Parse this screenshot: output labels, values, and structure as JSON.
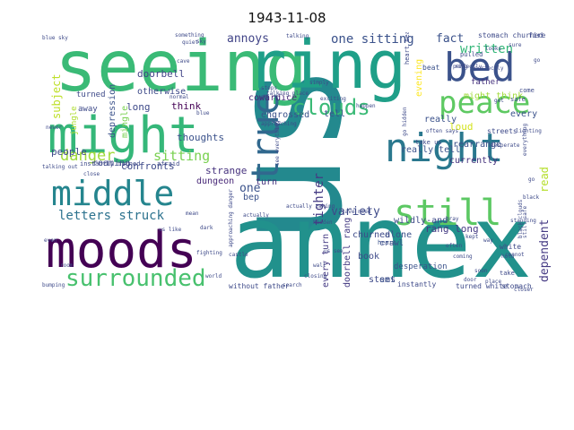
{
  "title": "1943-11-08",
  "word_cloud": {
    "words": [
      {
        "text": "us",
        "color": "#23898e"
      },
      {
        "text": "annex",
        "color": "#21918c"
      },
      {
        "text": "seeing",
        "color": "#3aba76"
      },
      {
        "text": "ring",
        "color": "#1f9f88"
      },
      {
        "text": "might",
        "color": "#35b779"
      },
      {
        "text": "moods",
        "color": "#440154"
      },
      {
        "text": "bed",
        "color": "#3b528b"
      },
      {
        "text": "middle",
        "color": "#25858e"
      },
      {
        "text": "night",
        "color": "#2a788e"
      },
      {
        "text": "peace",
        "color": "#5ec962"
      },
      {
        "text": "still",
        "color": "#5cc863"
      },
      {
        "text": "true",
        "color": "#31688e"
      },
      {
        "text": "surrounded",
        "color": "#48c16e"
      },
      {
        "text": "clouds",
        "color": "#3aba76"
      },
      {
        "text": "danger",
        "color": "#a0da39"
      },
      {
        "text": "sitting",
        "color": "#7ad151"
      },
      {
        "text": "letters struck",
        "color": "#2c728e"
      },
      {
        "text": "tighter",
        "color": "#443a83"
      },
      {
        "text": "variety",
        "color": "#3e4a89"
      },
      {
        "text": "annoys",
        "color": "#414487"
      },
      {
        "text": "one sitting",
        "color": "#3b528b"
      },
      {
        "text": "fact",
        "color": "#3b528b"
      },
      {
        "text": "written",
        "color": "#35b779"
      },
      {
        "text": "dependent",
        "color": "#443983"
      },
      {
        "text": "read",
        "color": "#b5de2b"
      },
      {
        "text": "subject",
        "color": "#bddf26"
      },
      {
        "text": "one",
        "color": "#3b528b"
      },
      {
        "text": "people",
        "color": "#3e4a89"
      },
      {
        "text": "doorbell",
        "color": "#414487"
      },
      {
        "text": "depression",
        "color": "#3b528b"
      },
      {
        "text": "long",
        "color": "#3e4a89"
      },
      {
        "text": "think",
        "color": "#440154"
      },
      {
        "text": "thoughts",
        "color": "#3b528b"
      },
      {
        "text": "confronts",
        "color": "#3e4a89"
      },
      {
        "text": "strange",
        "color": "#46327e"
      },
      {
        "text": "roaming",
        "color": "#3e4a89"
      },
      {
        "text": "every turn",
        "color": "#443a83"
      },
      {
        "text": "doorbell rang",
        "color": "#443a83"
      },
      {
        "text": "engrossed",
        "color": "#3b528b"
      },
      {
        "text": "cowardice",
        "color": "#482878"
      },
      {
        "text": "tell",
        "color": "#3b528b"
      },
      {
        "text": "rang long",
        "color": "#443a83"
      },
      {
        "text": "book",
        "color": "#3e4a89"
      },
      {
        "text": "turn",
        "color": "#46327e"
      },
      {
        "text": "stems",
        "color": "#3e4a89"
      },
      {
        "text": "really tell",
        "color": "#3b528b"
      },
      {
        "text": "rearrange",
        "color": "#3b528b"
      },
      {
        "text": "might think",
        "color": "#a0da39"
      },
      {
        "text": "every",
        "color": "#3b528b"
      },
      {
        "text": "currently",
        "color": "#46327e"
      },
      {
        "text": "alone",
        "color": "#3b528b"
      },
      {
        "text": "loud",
        "color": "#d2e21b"
      },
      {
        "text": "churned",
        "color": "#3e4a89"
      },
      {
        "text": "wildly-and",
        "color": "#3e4a89"
      },
      {
        "text": "otherwise",
        "color": "#3e4a89"
      },
      {
        "text": "father",
        "color": "#46327e"
      },
      {
        "text": "dungeon",
        "color": "#482878"
      },
      {
        "text": "evening",
        "color": "#fde725"
      },
      {
        "text": "really",
        "color": "#3b528b"
      },
      {
        "text": "bep",
        "color": "#3b528b"
      },
      {
        "text": "turned",
        "color": "#3e4a89"
      },
      {
        "text": "away",
        "color": "#3e4a89"
      },
      {
        "text": "jungle",
        "color": "#addc30"
      },
      {
        "text": "mingle",
        "color": "#7ad151"
      },
      {
        "text": "desperation",
        "color": "#3b528b"
      },
      {
        "text": "crawl",
        "color": "#3e4a89"
      },
      {
        "text": "set",
        "color": "#3b528b"
      },
      {
        "text": "instantly",
        "color": "#3e4a89"
      },
      {
        "text": "turned white",
        "color": "#3e4a89"
      },
      {
        "text": "stomach",
        "color": "#3e4a89"
      },
      {
        "text": "without father",
        "color": "#3e4a89"
      },
      {
        "text": "instantly turned",
        "color": "#3e4a89"
      },
      {
        "text": "afraid",
        "color": "#3e4a89"
      },
      {
        "text": "stomach churned",
        "color": "#3e4a89"
      },
      {
        "text": "fire",
        "color": "#3e4a89"
      },
      {
        "text": "streets",
        "color": "#3e4a89"
      },
      {
        "text": "beat",
        "color": "#3b528b"
      },
      {
        "text": "heart",
        "color": "#3b528b"
      },
      {
        "text": "heart beat",
        "color": "#3e4a89"
      },
      {
        "text": "come",
        "color": "#3e4a89"
      },
      {
        "text": "white",
        "color": "#3e4a89"
      },
      {
        "text": "take",
        "color": "#3e4a89"
      },
      {
        "text": "take us",
        "color": "#3e4a89"
      },
      {
        "text": "safe",
        "color": "#3e4a89"
      },
      {
        "text": "pulled",
        "color": "#3e4a89"
      },
      {
        "text": "approaching",
        "color": "#3e4a89"
      },
      {
        "text": "blue sky",
        "color": "#3e4a89"
      },
      {
        "text": "quiet",
        "color": "#3e4a89"
      },
      {
        "text": "something",
        "color": "#3e4a89"
      },
      {
        "text": "talking",
        "color": "#3e4a89"
      },
      {
        "text": "perfectly",
        "color": "#3e4a89"
      },
      {
        "text": "everything",
        "color": "#3e4a89"
      },
      {
        "text": "see everything",
        "color": "#3e4a89"
      },
      {
        "text": "talking place",
        "color": "#3e4a89"
      },
      {
        "text": "happen",
        "color": "#3e4a89"
      },
      {
        "text": "sky",
        "color": "#3e4a89"
      },
      {
        "text": "blue",
        "color": "#3e4a89"
      },
      {
        "text": "never",
        "color": "#3e4a89"
      },
      {
        "text": "looks",
        "color": "#3e4a89"
      },
      {
        "text": "sure",
        "color": "#3e4a89"
      },
      {
        "text": "simply",
        "color": "#3e4a89"
      },
      {
        "text": "go",
        "color": "#3e4a89"
      },
      {
        "text": "way",
        "color": "#3e4a89"
      },
      {
        "text": "get",
        "color": "#3e4a89"
      },
      {
        "text": "standing",
        "color": "#3e4a89"
      },
      {
        "text": "black",
        "color": "#3e4a89"
      },
      {
        "text": "still safe",
        "color": "#3e4a89"
      },
      {
        "text": "black clouds",
        "color": "#3e4a89"
      },
      {
        "text": "world",
        "color": "#3e4a89"
      },
      {
        "text": "bumping",
        "color": "#3e4a89"
      },
      {
        "text": "search",
        "color": "#3e4a89"
      },
      {
        "text": "actually",
        "color": "#3e4a89"
      },
      {
        "text": "actually taking",
        "color": "#3e4a89"
      },
      {
        "text": "approaching danger",
        "color": "#3e4a89"
      },
      {
        "text": "castle",
        "color": "#3e4a89"
      },
      {
        "text": "us like",
        "color": "#3e4a89"
      },
      {
        "text": "talking out",
        "color": "#3e4a89"
      },
      {
        "text": "dark",
        "color": "#3e4a89"
      },
      {
        "text": "cave",
        "color": "#3e4a89"
      },
      {
        "text": "normal",
        "color": "#3e4a89"
      },
      {
        "text": "lighting",
        "color": "#3e4a89"
      },
      {
        "text": "desperate",
        "color": "#3e4a89"
      },
      {
        "text": "steps",
        "color": "#3e4a89"
      },
      {
        "text": "exciting",
        "color": "#3e4a89"
      },
      {
        "text": "place",
        "color": "#3e4a89"
      },
      {
        "text": "closer",
        "color": "#3e4a89"
      },
      {
        "text": "kept",
        "color": "#3e4a89"
      },
      {
        "text": "hold",
        "color": "#3e4a89"
      },
      {
        "text": "go hidden",
        "color": "#3e4a89"
      },
      {
        "text": "hidden",
        "color": "#3e4a89"
      },
      {
        "text": "closing",
        "color": "#3e4a89"
      },
      {
        "text": "ring",
        "color": "#3e4a89"
      },
      {
        "text": "coming",
        "color": "#3e4a89"
      },
      {
        "text": "door",
        "color": "#3e4a89"
      },
      {
        "text": "soon",
        "color": "#3e4a89"
      },
      {
        "text": "cannot",
        "color": "#3e4a89"
      },
      {
        "text": "often",
        "color": "#3e4a89"
      },
      {
        "text": "gray",
        "color": "#3e4a89"
      },
      {
        "text": "often says",
        "color": "#3e4a89"
      },
      {
        "text": "us see",
        "color": "#3e4a89"
      },
      {
        "text": "cave need",
        "color": "#3e4a89"
      },
      {
        "text": "mean",
        "color": "#3e4a89"
      },
      {
        "text": "close",
        "color": "#3e4a89"
      },
      {
        "text": "perfectly",
        "color": "#3e4a89"
      },
      {
        "text": "even",
        "color": "#3e4a89"
      },
      {
        "text": "go",
        "color": "#3e4a89"
      },
      {
        "text": "room",
        "color": "#3e4a89"
      },
      {
        "text": "fighting",
        "color": "#3e4a89"
      },
      {
        "text": "wall",
        "color": "#3e4a89"
      }
    ]
  }
}
